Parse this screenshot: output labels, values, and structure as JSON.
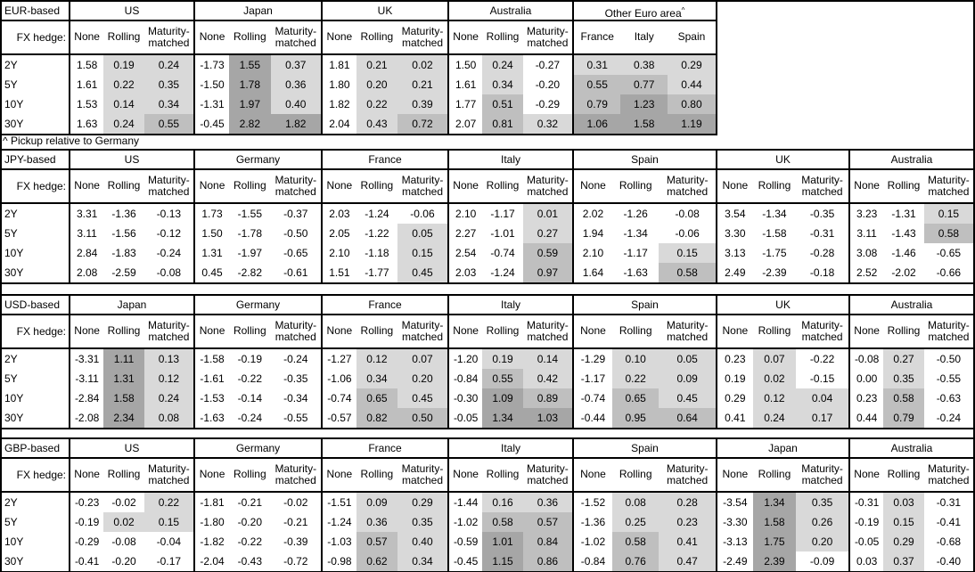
{
  "note": "^ Pickup relative to Germany",
  "fx_hedge_label": "FX hedge:",
  "tenors": [
    "2Y",
    "5Y",
    "10Y",
    "30Y"
  ],
  "colors": {
    "border": "#000000",
    "shade_light": "#d9d9d9",
    "shade_medium": "#bfbfbf",
    "shade_dark": "#a6a6a6"
  },
  "shading_rule": "Rolling/Maturity-matched (and pickup) cells: >0 light, >=0.5 medium, >=1.0 dark",
  "tables": [
    {
      "base": "EUR-based",
      "panels": [
        {
          "title": "US",
          "headers": [
            "None",
            "Rolling",
            "Maturity-matched"
          ],
          "rows": [
            [
              "1.58",
              "0.19",
              "0.24"
            ],
            [
              "1.61",
              "0.22",
              "0.35"
            ],
            [
              "1.53",
              "0.14",
              "0.34"
            ],
            [
              "1.63",
              "0.24",
              "0.55"
            ]
          ]
        },
        {
          "title": "Japan",
          "headers": [
            "None",
            "Rolling",
            "Maturity-matched"
          ],
          "rows": [
            [
              "-1.73",
              "1.55",
              "0.37"
            ],
            [
              "-1.50",
              "1.78",
              "0.36"
            ],
            [
              "-1.31",
              "1.97",
              "0.40"
            ],
            [
              "-0.45",
              "2.82",
              "1.82"
            ]
          ]
        },
        {
          "title": "UK",
          "headers": [
            "None",
            "Rolling",
            "Maturity-matched"
          ],
          "rows": [
            [
              "1.81",
              "0.21",
              "0.02"
            ],
            [
              "1.80",
              "0.20",
              "0.21"
            ],
            [
              "1.82",
              "0.22",
              "0.39"
            ],
            [
              "2.04",
              "0.43",
              "0.72"
            ]
          ]
        },
        {
          "title": "Australia",
          "headers": [
            "None",
            "Rolling",
            "Maturity-matched"
          ],
          "rows": [
            [
              "1.50",
              "0.24",
              "-0.27"
            ],
            [
              "1.61",
              "0.34",
              "-0.20"
            ],
            [
              "1.77",
              "0.51",
              "-0.29"
            ],
            [
              "2.07",
              "0.81",
              "0.32"
            ]
          ]
        },
        {
          "title": "Other Euro area",
          "title_sup": "^",
          "headers": [
            "France",
            "Italy",
            "Spain"
          ],
          "rows": [
            [
              "0.31",
              "0.38",
              "0.29"
            ],
            [
              "0.55",
              "0.77",
              "0.44"
            ],
            [
              "0.79",
              "1.23",
              "0.80"
            ],
            [
              "1.06",
              "1.58",
              "1.19"
            ]
          ]
        }
      ]
    },
    {
      "base": "JPY-based",
      "panels": [
        {
          "title": "US",
          "headers": [
            "None",
            "Rolling",
            "Maturity-matched"
          ],
          "rows": [
            [
              "3.31",
              "-1.36",
              "-0.13"
            ],
            [
              "3.11",
              "-1.56",
              "-0.12"
            ],
            [
              "2.84",
              "-1.83",
              "-0.24"
            ],
            [
              "2.08",
              "-2.59",
              "-0.08"
            ]
          ]
        },
        {
          "title": "Germany",
          "headers": [
            "None",
            "Rolling",
            "Maturity-matched"
          ],
          "rows": [
            [
              "1.73",
              "-1.55",
              "-0.37"
            ],
            [
              "1.50",
              "-1.78",
              "-0.50"
            ],
            [
              "1.31",
              "-1.97",
              "-0.65"
            ],
            [
              "0.45",
              "-2.82",
              "-0.61"
            ]
          ]
        },
        {
          "title": "France",
          "headers": [
            "None",
            "Rolling",
            "Maturity-matched"
          ],
          "rows": [
            [
              "2.03",
              "-1.24",
              "-0.06"
            ],
            [
              "2.05",
              "-1.22",
              "0.05"
            ],
            [
              "2.10",
              "-1.18",
              "0.15"
            ],
            [
              "1.51",
              "-1.77",
              "0.45"
            ]
          ]
        },
        {
          "title": "Italy",
          "headers": [
            "None",
            "Rolling",
            "Maturity-matched"
          ],
          "rows": [
            [
              "2.10",
              "-1.17",
              "0.01"
            ],
            [
              "2.27",
              "-1.01",
              "0.27"
            ],
            [
              "2.54",
              "-0.74",
              "0.59"
            ],
            [
              "2.03",
              "-1.24",
              "0.97"
            ]
          ]
        },
        {
          "title": "Spain",
          "headers": [
            "None",
            "Rolling",
            "Maturity-matched"
          ],
          "rows": [
            [
              "2.02",
              "-1.26",
              "-0.08"
            ],
            [
              "1.94",
              "-1.34",
              "-0.06"
            ],
            [
              "2.10",
              "-1.17",
              "0.15"
            ],
            [
              "1.64",
              "-1.63",
              "0.58"
            ]
          ]
        },
        {
          "title": "UK",
          "headers": [
            "None",
            "Rolling",
            "Maturity-matched"
          ],
          "rows": [
            [
              "3.54",
              "-1.34",
              "-0.35"
            ],
            [
              "3.30",
              "-1.58",
              "-0.31"
            ],
            [
              "3.13",
              "-1.75",
              "-0.28"
            ],
            [
              "2.49",
              "-2.39",
              "-0.18"
            ]
          ]
        },
        {
          "title": "Australia",
          "headers": [
            "None",
            "Rolling",
            "Maturity-matched"
          ],
          "rows": [
            [
              "3.23",
              "-1.31",
              "0.15"
            ],
            [
              "3.11",
              "-1.43",
              "0.58"
            ],
            [
              "3.08",
              "-1.46",
              "-0.65"
            ],
            [
              "2.52",
              "-2.02",
              "-0.66"
            ]
          ]
        }
      ]
    },
    {
      "base": "USD-based",
      "panels": [
        {
          "title": "Japan",
          "headers": [
            "None",
            "Rolling",
            "Maturity-matched"
          ],
          "rows": [
            [
              "-3.31",
              "1.11",
              "0.13"
            ],
            [
              "-3.11",
              "1.31",
              "0.12"
            ],
            [
              "-2.84",
              "1.58",
              "0.24"
            ],
            [
              "-2.08",
              "2.34",
              "0.08"
            ]
          ]
        },
        {
          "title": "Germany",
          "headers": [
            "None",
            "Rolling",
            "Maturity-matched"
          ],
          "rows": [
            [
              "-1.58",
              "-0.19",
              "-0.24"
            ],
            [
              "-1.61",
              "-0.22",
              "-0.35"
            ],
            [
              "-1.53",
              "-0.14",
              "-0.34"
            ],
            [
              "-1.63",
              "-0.24",
              "-0.55"
            ]
          ]
        },
        {
          "title": "France",
          "headers": [
            "None",
            "Rolling",
            "Maturity-matched"
          ],
          "rows": [
            [
              "-1.27",
              "0.12",
              "0.07"
            ],
            [
              "-1.06",
              "0.34",
              "0.20"
            ],
            [
              "-0.74",
              "0.65",
              "0.45"
            ],
            [
              "-0.57",
              "0.82",
              "0.50"
            ]
          ]
        },
        {
          "title": "Italy",
          "headers": [
            "None",
            "Rolling",
            "Maturity-matched"
          ],
          "rows": [
            [
              "-1.20",
              "0.19",
              "0.14"
            ],
            [
              "-0.84",
              "0.55",
              "0.42"
            ],
            [
              "-0.30",
              "1.09",
              "0.89"
            ],
            [
              "-0.05",
              "1.34",
              "1.03"
            ]
          ]
        },
        {
          "title": "Spain",
          "headers": [
            "None",
            "Rolling",
            "Maturity-matched"
          ],
          "rows": [
            [
              "-1.29",
              "0.10",
              "0.05"
            ],
            [
              "-1.17",
              "0.22",
              "0.09"
            ],
            [
              "-0.74",
              "0.65",
              "0.45"
            ],
            [
              "-0.44",
              "0.95",
              "0.64"
            ]
          ]
        },
        {
          "title": "UK",
          "headers": [
            "None",
            "Rolling",
            "Maturity-matched"
          ],
          "rows": [
            [
              "0.23",
              "0.07",
              "-0.22"
            ],
            [
              "0.19",
              "0.02",
              "-0.15"
            ],
            [
              "0.29",
              "0.12",
              "0.04"
            ],
            [
              "0.41",
              "0.24",
              "0.17"
            ]
          ]
        },
        {
          "title": "Australia",
          "headers": [
            "None",
            "Rolling",
            "Maturity-matched"
          ],
          "rows": [
            [
              "-0.08",
              "0.27",
              "-0.50"
            ],
            [
              "0.00",
              "0.35",
              "-0.55"
            ],
            [
              "0.23",
              "0.58",
              "-0.63"
            ],
            [
              "0.44",
              "0.79",
              "-0.24"
            ]
          ]
        }
      ]
    },
    {
      "base": "GBP-based",
      "panels": [
        {
          "title": "US",
          "headers": [
            "None",
            "Rolling",
            "Maturity-matched"
          ],
          "rows": [
            [
              "-0.23",
              "-0.02",
              "0.22"
            ],
            [
              "-0.19",
              "0.02",
              "0.15"
            ],
            [
              "-0.29",
              "-0.08",
              "-0.04"
            ],
            [
              "-0.41",
              "-0.20",
              "-0.17"
            ]
          ]
        },
        {
          "title": "Germany",
          "headers": [
            "None",
            "Rolling",
            "Maturity-matched"
          ],
          "rows": [
            [
              "-1.81",
              "-0.21",
              "-0.02"
            ],
            [
              "-1.80",
              "-0.20",
              "-0.21"
            ],
            [
              "-1.82",
              "-0.22",
              "-0.39"
            ],
            [
              "-2.04",
              "-0.43",
              "-0.72"
            ]
          ]
        },
        {
          "title": "France",
          "headers": [
            "None",
            "Rolling",
            "Maturity-matched"
          ],
          "rows": [
            [
              "-1.51",
              "0.09",
              "0.29"
            ],
            [
              "-1.24",
              "0.36",
              "0.35"
            ],
            [
              "-1.03",
              "0.57",
              "0.40"
            ],
            [
              "-0.98",
              "0.62",
              "0.34"
            ]
          ]
        },
        {
          "title": "Italy",
          "headers": [
            "None",
            "Rolling",
            "Maturity-matched"
          ],
          "rows": [
            [
              "-1.44",
              "0.16",
              "0.36"
            ],
            [
              "-1.02",
              "0.58",
              "0.57"
            ],
            [
              "-0.59",
              "1.01",
              "0.84"
            ],
            [
              "-0.45",
              "1.15",
              "0.86"
            ]
          ]
        },
        {
          "title": "Spain",
          "headers": [
            "None",
            "Rolling",
            "Maturity-matched"
          ],
          "rows": [
            [
              "-1.52",
              "0.08",
              "0.28"
            ],
            [
              "-1.36",
              "0.25",
              "0.23"
            ],
            [
              "-1.02",
              "0.58",
              "0.41"
            ],
            [
              "-0.84",
              "0.76",
              "0.47"
            ]
          ]
        },
        {
          "title": "Japan",
          "headers": [
            "None",
            "Rolling",
            "Maturity-matched"
          ],
          "rows": [
            [
              "-3.54",
              "1.34",
              "0.35"
            ],
            [
              "-3.30",
              "1.58",
              "0.26"
            ],
            [
              "-3.13",
              "1.75",
              "0.20"
            ],
            [
              "-2.49",
              "2.39",
              "-0.09"
            ]
          ]
        },
        {
          "title": "Australia",
          "headers": [
            "None",
            "Rolling",
            "Maturity-matched"
          ],
          "rows": [
            [
              "-0.31",
              "0.03",
              "-0.31"
            ],
            [
              "-0.19",
              "0.15",
              "-0.41"
            ],
            [
              "-0.05",
              "0.29",
              "-0.68"
            ],
            [
              "0.03",
              "0.37",
              "-0.40"
            ]
          ]
        }
      ]
    }
  ]
}
